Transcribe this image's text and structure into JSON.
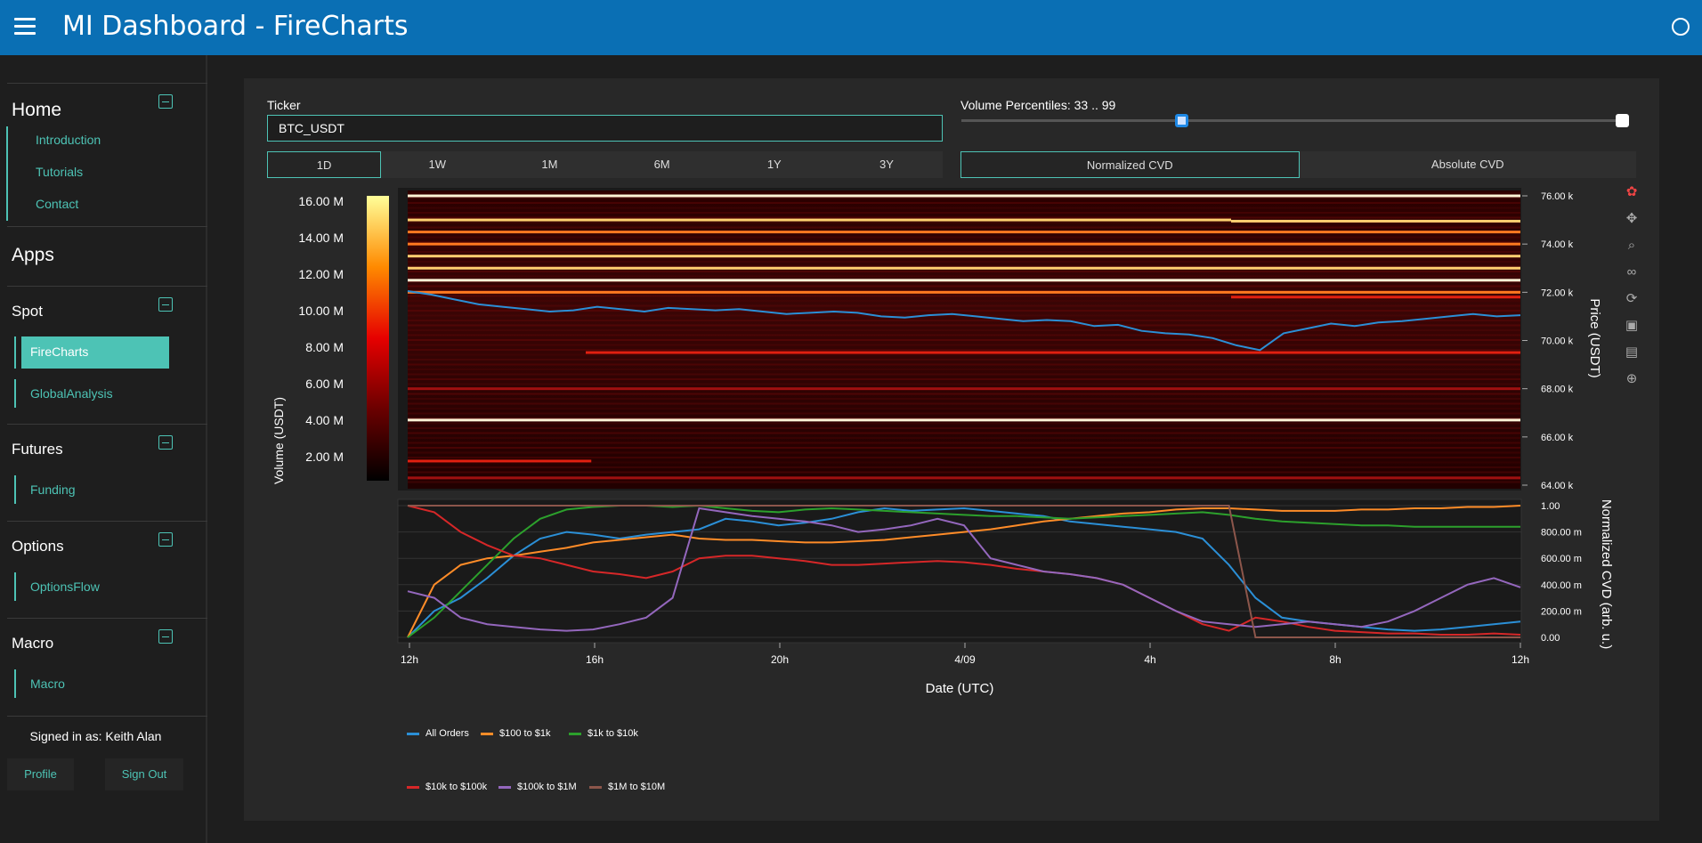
{
  "header": {
    "title": "MI Dashboard  -  FireCharts"
  },
  "sidebar": {
    "home": {
      "label": "Home",
      "items": [
        "Introduction",
        "Tutorials",
        "Contact"
      ]
    },
    "apps": {
      "label": "Apps"
    },
    "spot": {
      "label": "Spot",
      "items": [
        "FireCharts",
        "GlobalAnalysis"
      ],
      "active": "FireCharts"
    },
    "futures": {
      "label": "Futures",
      "items": [
        "Funding"
      ]
    },
    "options": {
      "label": "Options",
      "items": [
        "OptionsFlow"
      ]
    },
    "macro": {
      "label": "Macro",
      "items": [
        "Macro"
      ]
    },
    "signed_in": "Signed in as: Keith Alan",
    "profile_label": "Profile",
    "signout_label": "Sign Out"
  },
  "controls": {
    "ticker_label": "Ticker",
    "ticker_value": "BTC_USDT",
    "ranges": [
      "1D",
      "1W",
      "1M",
      "6M",
      "1Y",
      "3Y"
    ],
    "active_range": "1D",
    "volume_label": "Volume Percentiles: 33 .. 99",
    "volume_low": 33,
    "volume_high": 99,
    "cvd_modes": [
      "Normalized CVD",
      "Absolute CVD"
    ],
    "active_cvd": "Normalized CVD"
  },
  "colors": {
    "accent": "#4dc3b5",
    "header": "#0a6fb4",
    "price_line": "#2b8fd6"
  },
  "chart_data": [
    {
      "type": "heatmap",
      "title": "",
      "xlabel": "Date (UTC)",
      "ylabel": "Price (USDT)",
      "colorbar_label": "Volume (USDT)",
      "colorbar_ticks": [
        "16.00 M",
        "14.00 M",
        "12.00 M",
        "10.00 M",
        "8.00 M",
        "6.00 M",
        "4.00 M",
        "2.00 M"
      ],
      "y_ticks": [
        "76.00 k",
        "74.00 k",
        "72.00 k",
        "70.00 k",
        "68.00 k",
        "66.00 k",
        "64.00 k"
      ],
      "ylim": [
        63800,
        76200
      ],
      "bright_levels": [
        {
          "price": 76000,
          "strength": 1.0,
          "x_from": 0,
          "x_to": 1
        },
        {
          "price": 75000,
          "strength": 0.9,
          "x_from": 0,
          "x_to": 0.74
        },
        {
          "price": 74950,
          "strength": 0.8,
          "x_from": 0.74,
          "x_to": 1
        },
        {
          "price": 74500,
          "strength": 0.6,
          "x_from": 0,
          "x_to": 1
        },
        {
          "price": 74000,
          "strength": 0.7,
          "x_from": 0,
          "x_to": 1
        },
        {
          "price": 73500,
          "strength": 0.8,
          "x_from": 0,
          "x_to": 1
        },
        {
          "price": 73000,
          "strength": 0.9,
          "x_from": 0,
          "x_to": 1
        },
        {
          "price": 72500,
          "strength": 1.0,
          "x_from": 0,
          "x_to": 1
        },
        {
          "price": 72000,
          "strength": 0.6,
          "x_from": 0,
          "x_to": 1
        },
        {
          "price": 71800,
          "strength": 0.55,
          "x_from": 0.74,
          "x_to": 1
        },
        {
          "price": 69500,
          "strength": 0.45,
          "x_from": 0.16,
          "x_to": 1
        },
        {
          "price": 68000,
          "strength": 0.4,
          "x_from": 0,
          "x_to": 1
        },
        {
          "price": 66700,
          "strength": 1.0,
          "x_from": 0,
          "x_to": 1
        },
        {
          "price": 65000,
          "strength": 0.55,
          "x_from": 0,
          "x_to": 0.165
        },
        {
          "price": 64300,
          "strength": 0.35,
          "x_from": 0,
          "x_to": 1
        }
      ],
      "price_series": {
        "name": "Price",
        "values": [
          72050,
          71900,
          71700,
          71500,
          71400,
          71300,
          71200,
          71250,
          71400,
          71300,
          71200,
          71350,
          71300,
          71250,
          71300,
          71200,
          71100,
          71150,
          71200,
          71150,
          71000,
          70950,
          71050,
          71100,
          71000,
          70900,
          70800,
          70850,
          70800,
          70600,
          70650,
          70400,
          70300,
          70250,
          70100,
          69800,
          69600,
          70300,
          70500,
          70700,
          70600,
          70750,
          70800,
          70900,
          71000,
          71100,
          71000,
          71050
        ]
      }
    },
    {
      "type": "line",
      "xlabel": "Date (UTC)",
      "ylabel": "Normalized CVD (arb. u.)",
      "x_ticks": [
        "12h",
        "16h",
        "20h",
        "4/09",
        "4h",
        "8h",
        "12h"
      ],
      "y_ticks": [
        "1.00",
        "800.00 m",
        "600.00 m",
        "400.00 m",
        "200.00 m",
        "0.00"
      ],
      "ylim": [
        0,
        1
      ],
      "series": [
        {
          "name": "All Orders",
          "color": "#2b8fd6",
          "values": [
            0.0,
            0.2,
            0.3,
            0.45,
            0.62,
            0.75,
            0.8,
            0.78,
            0.75,
            0.78,
            0.8,
            0.82,
            0.9,
            0.88,
            0.85,
            0.87,
            0.9,
            0.95,
            0.98,
            0.96,
            0.97,
            0.98,
            0.96,
            0.94,
            0.92,
            0.88,
            0.86,
            0.84,
            0.82,
            0.8,
            0.75,
            0.55,
            0.3,
            0.15,
            0.12,
            0.1,
            0.08,
            0.06,
            0.05,
            0.06,
            0.08,
            0.1,
            0.12
          ]
        },
        {
          "name": "$100 to $1k",
          "color": "#ff8c28",
          "values": [
            0.0,
            0.4,
            0.55,
            0.6,
            0.62,
            0.65,
            0.68,
            0.72,
            0.74,
            0.76,
            0.78,
            0.75,
            0.74,
            0.74,
            0.73,
            0.72,
            0.72,
            0.73,
            0.74,
            0.76,
            0.78,
            0.8,
            0.82,
            0.85,
            0.88,
            0.9,
            0.92,
            0.94,
            0.95,
            0.97,
            0.98,
            0.98,
            0.97,
            0.96,
            0.96,
            0.96,
            0.97,
            0.97,
            0.98,
            0.98,
            0.99,
            0.99,
            1.0
          ]
        },
        {
          "name": "$1k to $10k",
          "color": "#2ca02c",
          "values": [
            0.0,
            0.15,
            0.35,
            0.55,
            0.75,
            0.9,
            0.97,
            0.99,
            1.0,
            1.0,
            0.99,
            1.0,
            0.98,
            0.96,
            0.95,
            0.97,
            0.98,
            0.97,
            0.96,
            0.95,
            0.94,
            0.93,
            0.92,
            0.92,
            0.91,
            0.9,
            0.91,
            0.92,
            0.93,
            0.94,
            0.95,
            0.93,
            0.9,
            0.88,
            0.87,
            0.86,
            0.85,
            0.85,
            0.84,
            0.84,
            0.84,
            0.84,
            0.84
          ]
        },
        {
          "name": "$10k to $100k",
          "color": "#d62728",
          "values": [
            1.0,
            0.95,
            0.8,
            0.7,
            0.62,
            0.6,
            0.55,
            0.5,
            0.48,
            0.45,
            0.5,
            0.6,
            0.62,
            0.62,
            0.6,
            0.58,
            0.55,
            0.55,
            0.56,
            0.57,
            0.58,
            0.57,
            0.55,
            0.52,
            0.5,
            0.48,
            0.45,
            0.4,
            0.3,
            0.2,
            0.1,
            0.05,
            0.15,
            0.12,
            0.08,
            0.05,
            0.04,
            0.03,
            0.03,
            0.02,
            0.02,
            0.03,
            0.02
          ]
        },
        {
          "name": "$100k to $1M",
          "color": "#9467bd",
          "values": [
            0.35,
            0.3,
            0.15,
            0.1,
            0.08,
            0.06,
            0.05,
            0.06,
            0.1,
            0.15,
            0.3,
            0.98,
            0.95,
            0.92,
            0.9,
            0.88,
            0.85,
            0.8,
            0.82,
            0.85,
            0.9,
            0.85,
            0.6,
            0.55,
            0.5,
            0.48,
            0.45,
            0.4,
            0.3,
            0.2,
            0.12,
            0.1,
            0.08,
            0.1,
            0.12,
            0.1,
            0.08,
            0.12,
            0.2,
            0.3,
            0.4,
            0.45,
            0.38
          ]
        },
        {
          "name": "$1M to $10M",
          "color": "#8c564b",
          "values": [
            1.0,
            1.0,
            1.0,
            1.0,
            1.0,
            1.0,
            1.0,
            1.0,
            1.0,
            1.0,
            1.0,
            1.0,
            1.0,
            1.0,
            1.0,
            1.0,
            1.0,
            1.0,
            1.0,
            1.0,
            1.0,
            1.0,
            1.0,
            1.0,
            1.0,
            1.0,
            1.0,
            1.0,
            1.0,
            1.0,
            1.0,
            1.0,
            0.0,
            0.0,
            0.0,
            0.0,
            0.0,
            0.0,
            0.0,
            0.0,
            0.0,
            0.0,
            0.0
          ]
        }
      ],
      "legend_placement": "bottom"
    }
  ]
}
